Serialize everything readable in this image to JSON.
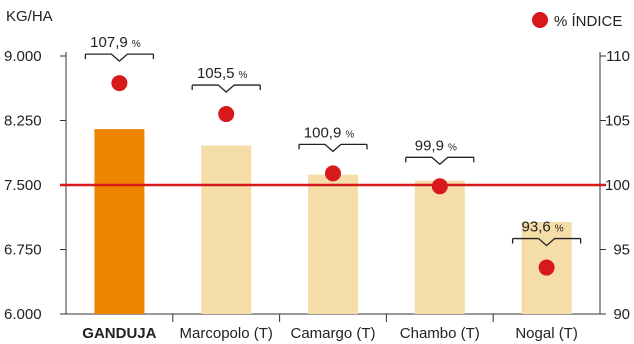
{
  "chart_data": {
    "type": "bar",
    "title": "",
    "ylabel_left": "KG/HA",
    "ylim_left": [
      6000,
      9000
    ],
    "yticks_left": [
      "9.000",
      "8.250",
      "7.500",
      "6.750",
      "6.000"
    ],
    "ytick_values_left": [
      9000,
      8250,
      7500,
      6750,
      6000
    ],
    "ylim_right": [
      90,
      110
    ],
    "yticks_right": [
      "110",
      "105",
      "100",
      "95",
      "90"
    ],
    "ytick_values_right": [
      110,
      105,
      100,
      95,
      90
    ],
    "reference_line": 100,
    "categories": [
      "GANDUJA",
      "Marcopolo (T)",
      "Camargo (T)",
      "Chambo (T)",
      "Nogal (T)"
    ],
    "highlight_category": "GANDUJA",
    "series": [
      {
        "type": "bar",
        "axis": "left",
        "values": [
          8150,
          7960,
          7620,
          7550,
          7070
        ]
      },
      {
        "name": "% ÍNDICE",
        "type": "scatter",
        "axis": "right",
        "values": [
          107.9,
          105.5,
          100.9,
          99.9,
          93.6
        ]
      }
    ],
    "index_labels": [
      "107,9",
      "105,5",
      "100,9",
      "99,9",
      "93,6"
    ],
    "index_unit": "%",
    "legend": {
      "label": "% ÍNDICE",
      "position": "top-right"
    },
    "colors": {
      "highlight_bar": "#EE8500",
      "bar": "#F5DDA8",
      "marker": "#D7191C",
      "reference_line": "#D7191C",
      "axis": "#333333"
    },
    "grid": false
  }
}
